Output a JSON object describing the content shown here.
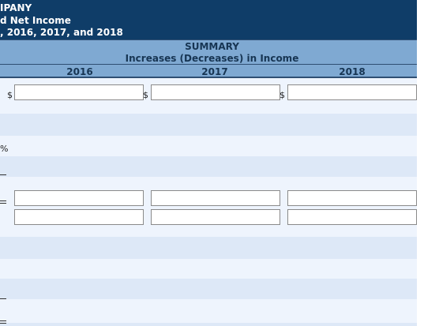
{
  "header": {
    "title_line1": "IPANY",
    "title_line2": "d Net Income",
    "title_line3": ", 2016, 2017, and 2018"
  },
  "summary": {
    "label": "SUMMARY",
    "subtitle": "Increases (Decreases) in Income",
    "years": [
      "2016",
      "2017",
      "2018"
    ]
  },
  "row1": {
    "currency_symbol": "$",
    "values": [
      "",
      "",
      ""
    ]
  },
  "percent_row": {
    "symbol": "%"
  },
  "row2": {
    "values": [
      "",
      "",
      ""
    ]
  },
  "row3": {
    "values": [
      "",
      "",
      ""
    ]
  }
}
